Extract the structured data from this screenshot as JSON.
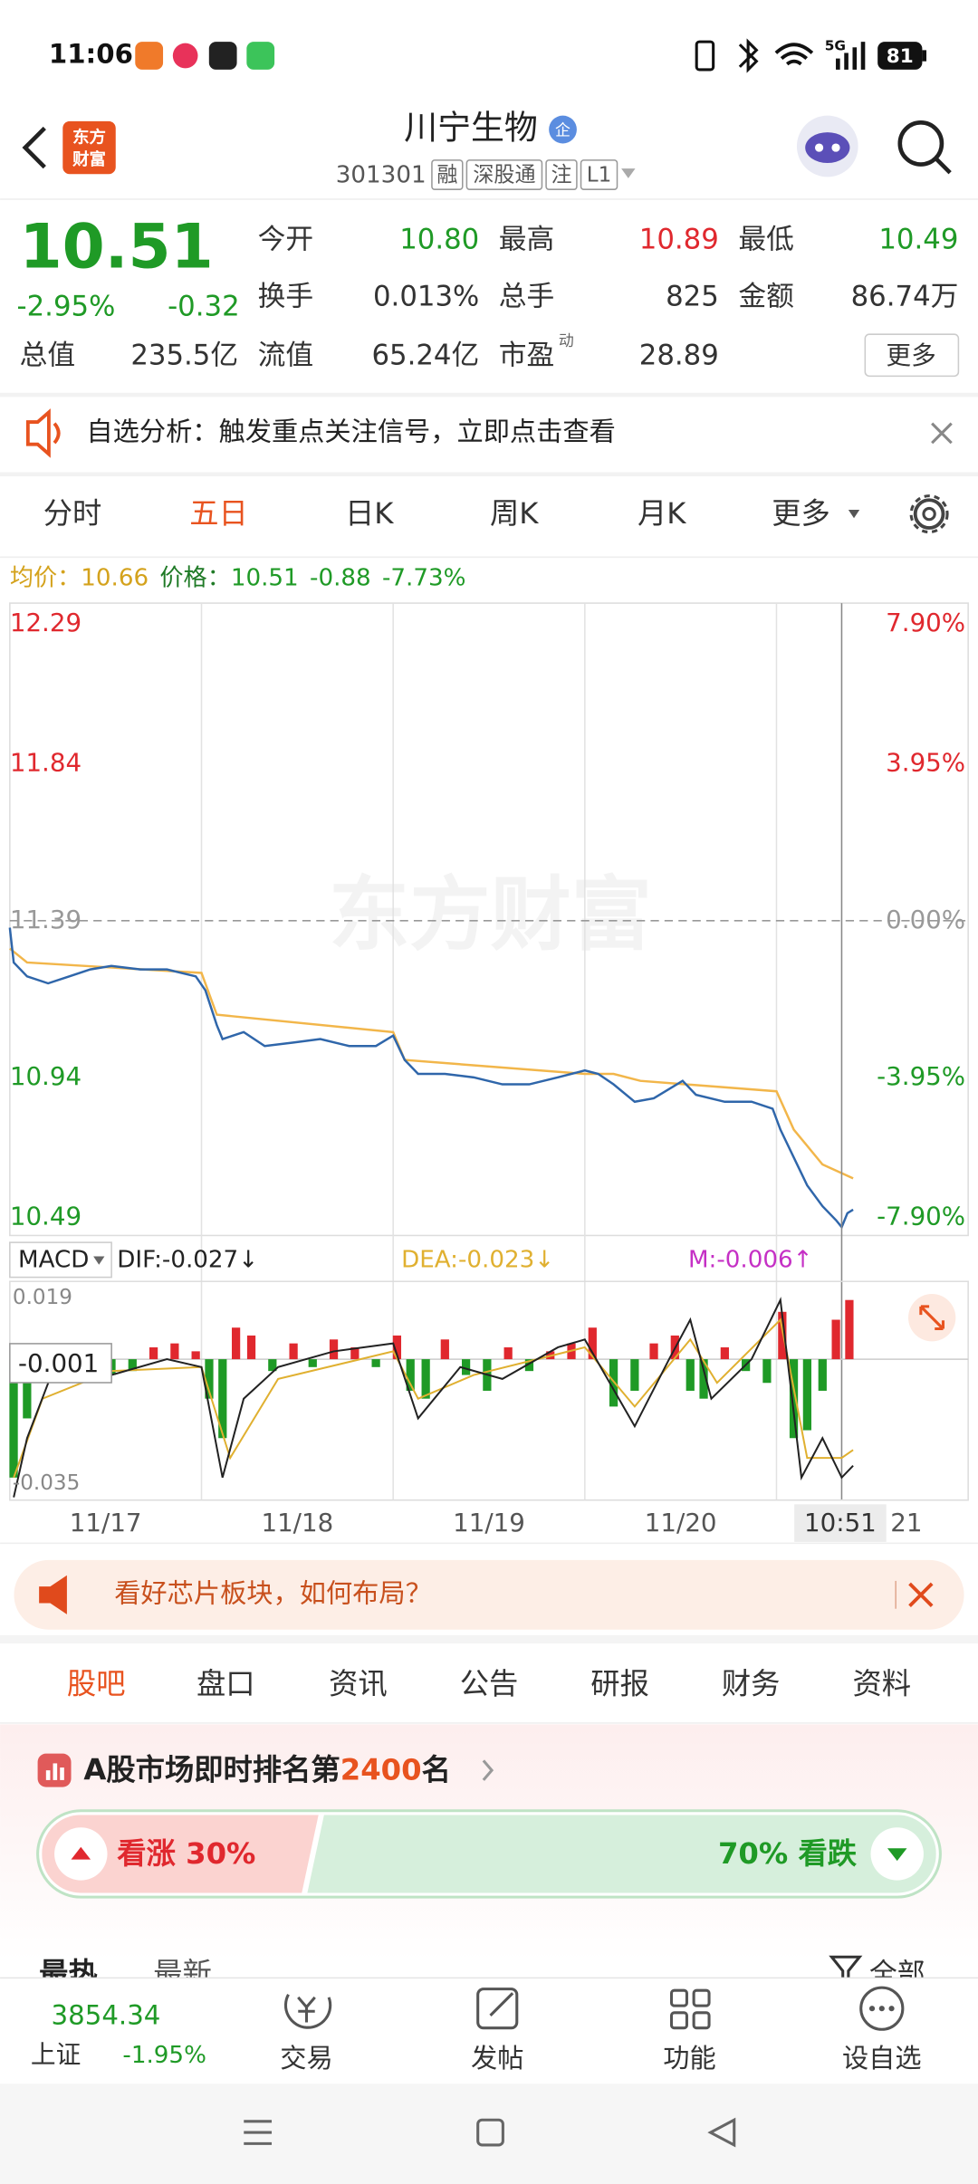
{
  "status_bar": {
    "time": "11:06",
    "network": "5G",
    "battery": "81"
  },
  "header": {
    "logo_lines": [
      "东方",
      "财富"
    ],
    "title": "川宁生物",
    "badge": "企",
    "code": "301301",
    "tags": [
      "融",
      "深股通",
      "注",
      "L1"
    ]
  },
  "quote": {
    "price": "10.51",
    "change_pct": "-2.95%",
    "change": "-0.32",
    "more": "更多",
    "fields": [
      {
        "label": "今开",
        "value": "10.80",
        "color": "#1f9a26"
      },
      {
        "label": "最高",
        "value": "10.89",
        "color": "#e0282e"
      },
      {
        "label": "最低",
        "value": "10.49",
        "color": "#1f9a26"
      },
      {
        "label": "换手",
        "value": "0.013%",
        "color": "#333333"
      },
      {
        "label": "总手",
        "value": "825",
        "color": "#333333"
      },
      {
        "label": "金额",
        "value": "86.74万",
        "color": "#333333"
      },
      {
        "label": "总值",
        "value": "235.5亿",
        "color": "#333333"
      },
      {
        "label": "流值",
        "value": "65.24亿",
        "color": "#333333"
      },
      {
        "label": "市盈",
        "sup": "动",
        "value": "28.89",
        "color": "#333333"
      }
    ]
  },
  "alert": {
    "text": "自选分析：触发重点关注信号，立即点击查看"
  },
  "tabs": {
    "items": [
      "分时",
      "五日",
      "日K",
      "周K",
      "月K",
      "更多"
    ],
    "active": 1
  },
  "info": {
    "avg_label": "均价：",
    "avg": "10.66",
    "price_label": "价格：",
    "price": "10.51",
    "change": "-0.88",
    "change_pct": "-7.73%"
  },
  "chart": {
    "type": "line",
    "watermark": "东方财富",
    "up_color": "#e0282e",
    "down_color": "#1f9a26",
    "flat_color": "#999999",
    "xlim": [
      0,
      5
    ],
    "ylim": [
      10.49,
      12.29
    ],
    "yticks": [
      12.29,
      11.84,
      11.39,
      10.94,
      10.49
    ],
    "y2lim": [
      -7.9,
      7.9
    ],
    "y2ticks": [
      {
        "value": 7.9,
        "label": "7.90%"
      },
      {
        "value": 3.95,
        "label": "3.95%"
      },
      {
        "value": 0,
        "label": "0.00%"
      },
      {
        "value": -3.95,
        "label": "-3.95%"
      },
      {
        "value": -7.9,
        "label": "-7.90%"
      }
    ],
    "categories": [
      "11/17",
      "11/18",
      "11/19",
      "11/20",
      "21"
    ],
    "crosshair": {
      "x": 4.34,
      "time": "10:51"
    },
    "series": [
      {
        "color": "#f2b64a",
        "x": [
          0,
          0.09,
          1,
          1.08,
          2,
          2.06,
          3,
          3.15,
          3.29,
          4,
          4.09,
          4.24,
          4.4
        ],
        "values": [
          11.31,
          11.27,
          11.24,
          11.12,
          11.07,
          10.99,
          10.95,
          10.95,
          10.93,
          10.9,
          10.79,
          10.69,
          10.65
        ]
      },
      {
        "color": "#2f66aa",
        "x": [
          0,
          0.02,
          0.09,
          0.2,
          0.31,
          0.42,
          0.53,
          0.68,
          0.82,
          0.97,
          1.02,
          1.08,
          1.11,
          1.22,
          1.33,
          1.48,
          1.62,
          1.77,
          1.91,
          2,
          2.06,
          2.13,
          2.27,
          2.42,
          2.57,
          2.71,
          2.86,
          3,
          3.07,
          3.15,
          3.26,
          3.36,
          3.51,
          3.58,
          3.73,
          3.87,
          3.98,
          4.02,
          4.09,
          4.16,
          4.24,
          4.31,
          4.34,
          4.37,
          4.4
        ],
        "values": [
          11.37,
          11.27,
          11.23,
          11.21,
          11.23,
          11.25,
          11.26,
          11.25,
          11.25,
          11.23,
          11.19,
          11.09,
          11.05,
          11.07,
          11.03,
          11.04,
          11.05,
          11.03,
          11.03,
          11.06,
          10.99,
          10.95,
          10.95,
          10.94,
          10.92,
          10.92,
          10.94,
          10.96,
          10.95,
          10.92,
          10.87,
          10.88,
          10.93,
          10.89,
          10.87,
          10.87,
          10.85,
          10.79,
          10.71,
          10.63,
          10.57,
          10.53,
          10.51,
          10.55,
          10.56
        ]
      }
    ]
  },
  "macd": {
    "type": "bar",
    "label": "MACD",
    "dif": "DIF:-0.027↓",
    "dea": "DEA:-0.023↓",
    "m": "M:-0.006↑",
    "ylim": [
      -0.035,
      0.019
    ],
    "yticks": [
      0.019,
      -0.035
    ],
    "cursor_value": -0.001,
    "bars": {
      "x": [
        0.02,
        0.09,
        0.2,
        0.31,
        0.42,
        0.53,
        0.64,
        0.75,
        0.86,
        0.97,
        1.04,
        1.11,
        1.18,
        1.26,
        1.37,
        1.48,
        1.58,
        1.69,
        1.8,
        1.91,
        2.02,
        2.09,
        2.17,
        2.27,
        2.38,
        2.49,
        2.6,
        2.71,
        2.82,
        2.93,
        3.04,
        3.15,
        3.26,
        3.36,
        3.47,
        3.55,
        3.62,
        3.73,
        3.84,
        3.95,
        4.03,
        4.09,
        4.16,
        4.24,
        4.31,
        4.38
      ],
      "values": [
        -0.03,
        -0.015,
        -0.003,
        0.002,
        -0.002,
        -0.004,
        -0.003,
        0.003,
        0.004,
        0.002,
        -0.01,
        -0.02,
        0.008,
        0.006,
        -0.003,
        0.004,
        -0.002,
        0.005,
        0.003,
        -0.002,
        0.006,
        -0.008,
        -0.01,
        0.005,
        -0.004,
        -0.008,
        0.003,
        -0.003,
        0.002,
        0.004,
        0.008,
        -0.012,
        -0.008,
        0.004,
        0.006,
        -0.008,
        -0.01,
        0.003,
        -0.003,
        -0.006,
        0.012,
        -0.02,
        -0.018,
        -0.008,
        0.01,
        0.015
      ]
    },
    "dif_line": {
      "color": "#222222",
      "x": [
        0.02,
        0.09,
        0.24,
        0.53,
        0.82,
        1,
        1.11,
        1.22,
        1.4,
        1.69,
        2,
        2.13,
        2.35,
        2.57,
        2.86,
        3,
        3.26,
        3.44,
        3.55,
        3.66,
        3.87,
        4.02,
        4.13,
        4.24,
        4.34,
        4.4
      ],
      "values": [
        -0.035,
        -0.02,
        -0.001,
        -0.004,
        0,
        -0.002,
        -0.03,
        -0.01,
        -0.002,
        0.002,
        0.004,
        -0.015,
        -0.002,
        -0.005,
        0.003,
        0.005,
        -0.017,
        0,
        0.01,
        -0.01,
        0,
        0.015,
        -0.03,
        -0.02,
        -0.03,
        -0.027
      ]
    },
    "dea_line": {
      "color": "#e0b030",
      "x": [
        0.02,
        0.17,
        0.53,
        1,
        1.15,
        1.4,
        2,
        2.13,
        2.42,
        3,
        3.26,
        3.55,
        3.69,
        4.02,
        4.16,
        4.34,
        4.4
      ],
      "values": [
        -0.03,
        -0.01,
        -0.003,
        -0.002,
        -0.025,
        -0.005,
        0.002,
        -0.01,
        -0.004,
        0.003,
        -0.012,
        0.005,
        -0.006,
        0.01,
        -0.025,
        -0.025,
        -0.023
      ]
    }
  },
  "ad": {
    "text": "看好芯片板块，如何布局？"
  },
  "section_tabs": {
    "items": [
      "股吧",
      "盘口",
      "资讯",
      "公告",
      "研报",
      "财务",
      "资料"
    ],
    "active": 0
  },
  "ranking": {
    "prefix": "A股市场即时排名第",
    "rank": "2400",
    "suffix": "名",
    "bull_label": "看涨 30%",
    "bear_label": "70% 看跌",
    "bull_pct": 30
  },
  "feed_tabs": {
    "items": [
      "最热",
      "最新"
    ],
    "filter": "全部"
  },
  "bottom_nav": {
    "index_value": "3854.34",
    "index_name": "上证",
    "index_change": "-1.95%",
    "items": [
      "交易",
      "发帖",
      "功能",
      "设自选"
    ]
  }
}
